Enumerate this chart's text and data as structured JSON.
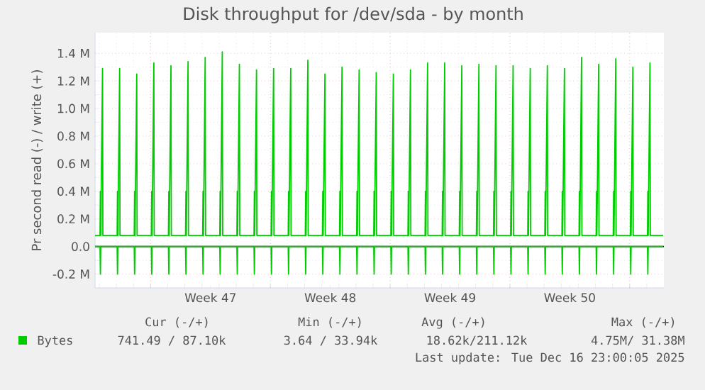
{
  "chart_data": {
    "type": "line",
    "title": "Disk throughput for /dev/sda - by month",
    "ylabel": "Pr second read (-) / write (+)",
    "xlim": [
      "2025-11-13T18:00",
      "2025-12-17T00:00"
    ],
    "xticks": [
      {
        "value": "2025-11-17",
        "label": null
      },
      {
        "value": "2025-11-20T12:00",
        "label": "Week 47"
      },
      {
        "value": "2025-11-24",
        "label": null
      },
      {
        "value": "2025-11-27T12:00",
        "label": "Week 48"
      },
      {
        "value": "2025-12-01",
        "label": null
      },
      {
        "value": "2025-12-04T12:00",
        "label": "Week 49"
      },
      {
        "value": "2025-12-08",
        "label": null
      },
      {
        "value": "2025-12-11T12:00",
        "label": "Week 50"
      },
      {
        "value": "2025-12-15",
        "label": null
      }
    ],
    "ylim": [
      -300000,
      1550000
    ],
    "yticks": [
      {
        "value": -200000,
        "label": "-0.2 M"
      },
      {
        "value": 0,
        "label": "0.0"
      },
      {
        "value": 200000,
        "label": "0.2 M"
      },
      {
        "value": 400000,
        "label": "0.4 M"
      },
      {
        "value": 600000,
        "label": "0.6 M"
      },
      {
        "value": 800000,
        "label": "0.8 M"
      },
      {
        "value": 1000000,
        "label": "1.0 M"
      },
      {
        "value": 1200000,
        "label": "1.2 M"
      },
      {
        "value": 1400000,
        "label": "1.4 M"
      }
    ],
    "grid": true,
    "legend": "bottom",
    "x": [
      "2025-11-13T18:00",
      "2025-11-14T01:00",
      "2025-11-14T01:30",
      "2025-11-14T02:00",
      "2025-11-14T04:30",
      "2025-11-14T05:00",
      "2025-11-15T01:00",
      "2025-11-15T01:30",
      "2025-11-15T02:00",
      "2025-11-15T04:30",
      "2025-11-15T05:00",
      "2025-11-16T01:00",
      "2025-11-16T01:30",
      "2025-11-16T02:00",
      "2025-11-16T04:30",
      "2025-11-16T05:00",
      "2025-11-17T01:00",
      "2025-11-17T01:30",
      "2025-11-17T02:00",
      "2025-11-17T04:30",
      "2025-11-17T05:00",
      "2025-11-18T01:00",
      "2025-11-18T01:30",
      "2025-11-18T02:00",
      "2025-11-18T04:30",
      "2025-11-18T05:00",
      "2025-11-19T01:00",
      "2025-11-19T01:30",
      "2025-11-19T02:00",
      "2025-11-19T04:30",
      "2025-11-19T05:00",
      "2025-11-20T01:00",
      "2025-11-20T01:30",
      "2025-11-20T02:00",
      "2025-11-20T04:30",
      "2025-11-20T05:00",
      "2025-11-21T01:00",
      "2025-11-21T01:30",
      "2025-11-21T02:00",
      "2025-11-21T04:30",
      "2025-11-21T05:00",
      "2025-11-22T01:00",
      "2025-11-22T01:30",
      "2025-11-22T02:00",
      "2025-11-22T04:30",
      "2025-11-22T05:00",
      "2025-11-23T01:00",
      "2025-11-23T01:30",
      "2025-11-23T02:00",
      "2025-11-23T04:30",
      "2025-11-23T05:00",
      "2025-11-24T01:00",
      "2025-11-24T01:30",
      "2025-11-24T02:00",
      "2025-11-24T04:30",
      "2025-11-24T05:00",
      "2025-11-25T01:00",
      "2025-11-25T01:30",
      "2025-11-25T02:00",
      "2025-11-25T04:30",
      "2025-11-25T05:00",
      "2025-11-26T01:00",
      "2025-11-26T01:30",
      "2025-11-26T02:00",
      "2025-11-26T04:30",
      "2025-11-26T05:00",
      "2025-11-27T01:00",
      "2025-11-27T01:30",
      "2025-11-27T02:00",
      "2025-11-27T04:30",
      "2025-11-27T05:00",
      "2025-11-28T01:00",
      "2025-11-28T01:30",
      "2025-11-28T02:00",
      "2025-11-28T04:30",
      "2025-11-28T05:00",
      "2025-11-29T01:00",
      "2025-11-29T01:30",
      "2025-11-29T02:00",
      "2025-11-29T04:30",
      "2025-11-29T05:00",
      "2025-11-30T01:00",
      "2025-11-30T01:30",
      "2025-11-30T02:00",
      "2025-11-30T04:30",
      "2025-11-30T05:00",
      "2025-12-01T01:00",
      "2025-12-01T01:30",
      "2025-12-01T02:00",
      "2025-12-01T04:30",
      "2025-12-01T05:00",
      "2025-12-02T01:00",
      "2025-12-02T01:30",
      "2025-12-02T02:00",
      "2025-12-02T04:30",
      "2025-12-02T05:00",
      "2025-12-03T01:00",
      "2025-12-03T01:30",
      "2025-12-03T02:00",
      "2025-12-03T04:30",
      "2025-12-03T05:00",
      "2025-12-04T01:00",
      "2025-12-04T01:30",
      "2025-12-04T02:00",
      "2025-12-04T04:30",
      "2025-12-04T05:00",
      "2025-12-05T01:00",
      "2025-12-05T01:30",
      "2025-12-05T02:00",
      "2025-12-05T04:30",
      "2025-12-05T05:00",
      "2025-12-06T01:00",
      "2025-12-06T01:30",
      "2025-12-06T02:00",
      "2025-12-06T04:30",
      "2025-12-06T05:00",
      "2025-12-07T01:00",
      "2025-12-07T01:30",
      "2025-12-07T02:00",
      "2025-12-07T04:30",
      "2025-12-07T05:00",
      "2025-12-08T01:00",
      "2025-12-08T01:30",
      "2025-12-08T02:00",
      "2025-12-08T04:30",
      "2025-12-08T05:00",
      "2025-12-09T01:00",
      "2025-12-09T01:30",
      "2025-12-09T02:00",
      "2025-12-09T04:30",
      "2025-12-09T05:00",
      "2025-12-10T01:00",
      "2025-12-10T01:30",
      "2025-12-10T02:00",
      "2025-12-10T04:30",
      "2025-12-10T05:00",
      "2025-12-11T01:00",
      "2025-12-11T01:30",
      "2025-12-11T02:00",
      "2025-12-11T04:30",
      "2025-12-11T05:00",
      "2025-12-12T01:00",
      "2025-12-12T01:30",
      "2025-12-12T02:00",
      "2025-12-12T04:30",
      "2025-12-12T05:00",
      "2025-12-13T01:00",
      "2025-12-13T01:30",
      "2025-12-13T02:00",
      "2025-12-13T04:30",
      "2025-12-13T05:00",
      "2025-12-14T01:00",
      "2025-12-14T01:30",
      "2025-12-14T02:00",
      "2025-12-14T04:30",
      "2025-12-14T05:00",
      "2025-12-15T01:00",
      "2025-12-15T01:30",
      "2025-12-15T02:00",
      "2025-12-15T04:30",
      "2025-12-15T05:00",
      "2025-12-16T01:00",
      "2025-12-16T01:30",
      "2025-12-16T02:00",
      "2025-12-16T04:30",
      "2025-12-16T05:00",
      "2025-12-16T23:00"
    ],
    "series": [
      {
        "name": "Bytes",
        "color": "#00cc00",
        "values": [
          80000,
          80000,
          400000,
          80000,
          1290000,
          80000,
          80000,
          400000,
          80000,
          1290000,
          80000,
          80000,
          400000,
          80000,
          1250000,
          80000,
          80000,
          400000,
          80000,
          1330000,
          80000,
          80000,
          400000,
          80000,
          1310000,
          80000,
          80000,
          400000,
          80000,
          1340000,
          80000,
          80000,
          400000,
          80000,
          1370000,
          80000,
          80000,
          400000,
          80000,
          1410000,
          80000,
          80000,
          400000,
          80000,
          1320000,
          80000,
          80000,
          400000,
          80000,
          1280000,
          80000,
          80000,
          400000,
          80000,
          1290000,
          80000,
          80000,
          400000,
          80000,
          1290000,
          80000,
          80000,
          400000,
          80000,
          1350000,
          80000,
          80000,
          400000,
          80000,
          1250000,
          80000,
          80000,
          400000,
          80000,
          1300000,
          80000,
          80000,
          400000,
          80000,
          1280000,
          80000,
          80000,
          400000,
          80000,
          1260000,
          80000,
          80000,
          400000,
          80000,
          1250000,
          80000,
          80000,
          400000,
          80000,
          1280000,
          80000,
          80000,
          400000,
          80000,
          1330000,
          80000,
          80000,
          400000,
          80000,
          1330000,
          80000,
          80000,
          400000,
          80000,
          1310000,
          80000,
          80000,
          400000,
          80000,
          1320000,
          80000,
          80000,
          400000,
          80000,
          1310000,
          80000,
          80000,
          400000,
          80000,
          1310000,
          80000,
          80000,
          400000,
          80000,
          1290000,
          80000,
          80000,
          400000,
          80000,
          1310000,
          80000,
          80000,
          400000,
          80000,
          1290000,
          80000,
          80000,
          400000,
          80000,
          1370000,
          80000,
          80000,
          400000,
          80000,
          1320000,
          80000,
          80000,
          400000,
          80000,
          1360000,
          80000,
          80000,
          400000,
          80000,
          1300000,
          80000,
          80000,
          400000,
          80000,
          1330000,
          80000,
          80000
        ]
      },
      {
        "color": "#00cc00",
        "values": [
          0,
          0,
          -200000,
          0,
          0,
          0,
          0,
          -200000,
          0,
          0,
          0,
          0,
          -200000,
          0,
          0,
          0,
          0,
          -200000,
          0,
          0,
          0,
          0,
          -200000,
          0,
          0,
          0,
          0,
          -200000,
          0,
          0,
          0,
          0,
          -200000,
          0,
          0,
          0,
          0,
          -200000,
          0,
          0,
          0,
          0,
          -200000,
          0,
          0,
          0,
          0,
          -200000,
          0,
          0,
          0,
          0,
          -200000,
          0,
          0,
          0,
          0,
          -200000,
          0,
          0,
          0,
          0,
          -200000,
          0,
          0,
          0,
          0,
          -200000,
          0,
          0,
          0,
          0,
          -200000,
          0,
          0,
          0,
          0,
          -200000,
          0,
          0,
          0,
          0,
          -200000,
          0,
          0,
          0,
          0,
          -200000,
          0,
          0,
          0,
          0,
          -200000,
          0,
          0,
          0,
          0,
          -200000,
          0,
          0,
          0,
          0,
          -200000,
          0,
          0,
          0,
          0,
          -200000,
          0,
          0,
          0,
          0,
          -200000,
          0,
          0,
          0,
          0,
          -200000,
          0,
          0,
          0,
          0,
          -200000,
          0,
          0,
          0,
          0,
          -200000,
          0,
          0,
          0,
          0,
          -200000,
          0,
          0,
          0,
          0,
          -200000,
          0,
          0,
          0,
          0,
          -200000,
          0,
          0,
          0,
          0,
          -200000,
          0,
          0,
          0,
          0,
          -200000,
          0,
          0,
          0,
          0,
          -200000,
          0,
          0,
          0,
          0,
          -200000,
          0,
          0,
          0,
          0
        ]
      }
    ],
    "annotations": [
      "Cur (-/+)",
      "Min (-/+)",
      "Avg (-/+)",
      "Max (-/+)",
      "741.49 / 87.10k",
      "3.64 / 33.94k",
      "18.62k/211.12k",
      "4.75M/ 31.38M",
      "Last update: Tue Dec 16 23:00:05 2025"
    ]
  }
}
